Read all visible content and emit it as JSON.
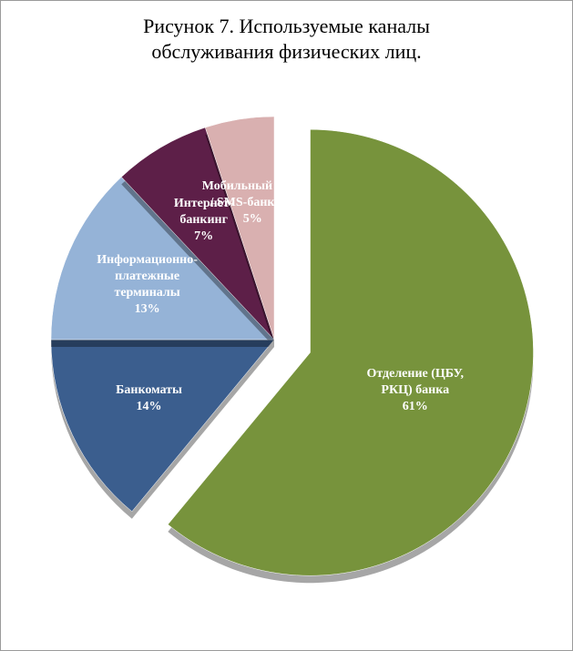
{
  "chart_data": {
    "type": "pie",
    "title": "Рисунок 7. Используемые каналы обслуживания физических лиц.",
    "categories": [
      "Отделение (ЦБУ, РКЦ) банка",
      "Банкоматы",
      "Информационно-платежные терминалы",
      "Интернет-банкинг",
      "Мобильный банк / SMS-банкинг"
    ],
    "values": [
      61,
      14,
      13,
      7,
      5
    ],
    "value_labels": [
      "61%",
      "14%",
      "13%",
      "7%",
      "5%"
    ],
    "colors": [
      "#77933c",
      "#3b5e8e",
      "#95b3d7",
      "#5d1f48",
      "#d9b0b0"
    ]
  }
}
